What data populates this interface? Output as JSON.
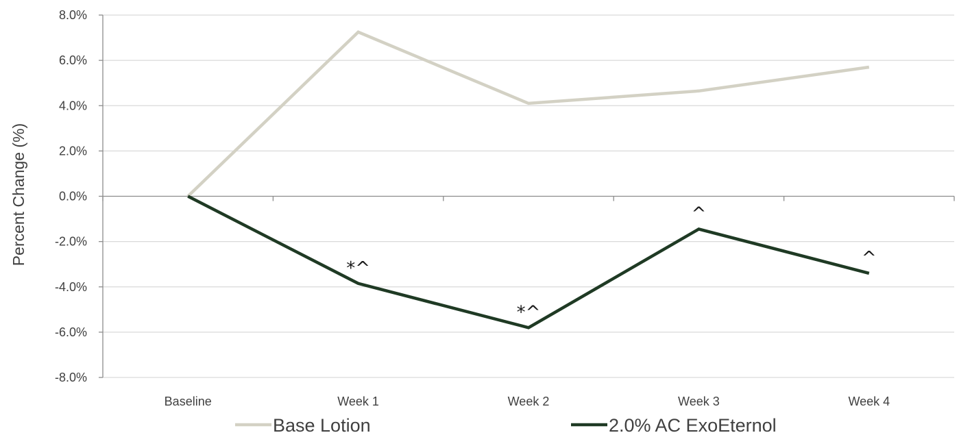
{
  "chart_data": {
    "type": "line",
    "title": "",
    "xlabel": "",
    "ylabel": "Percent Change (%)",
    "categories": [
      "Baseline",
      "Week 1",
      "Week 2",
      "Week 3",
      "Week 4"
    ],
    "ylim": [
      -8,
      8
    ],
    "yticks": [
      8,
      6,
      4,
      2,
      0,
      -2,
      -4,
      -6,
      -8
    ],
    "ytick_labels": [
      "8.0%",
      "6.0%",
      "4.0%",
      "2.0%",
      "0.0%",
      "-2.0%",
      "-4.0%",
      "-6.0%",
      "-8.0%"
    ],
    "grid": true,
    "legend_position": "bottom",
    "series": [
      {
        "name": "Base Lotion",
        "color": "#d3d1c4",
        "values": [
          0.0,
          7.25,
          4.1,
          4.65,
          5.7
        ]
      },
      {
        "name": "2.0% AC ExoEternol",
        "color": "#1f3a24",
        "values": [
          0.0,
          -3.85,
          -5.8,
          -1.45,
          -3.4
        ],
        "annotations": [
          "",
          "*^",
          "*^",
          "^",
          "^"
        ]
      }
    ]
  }
}
